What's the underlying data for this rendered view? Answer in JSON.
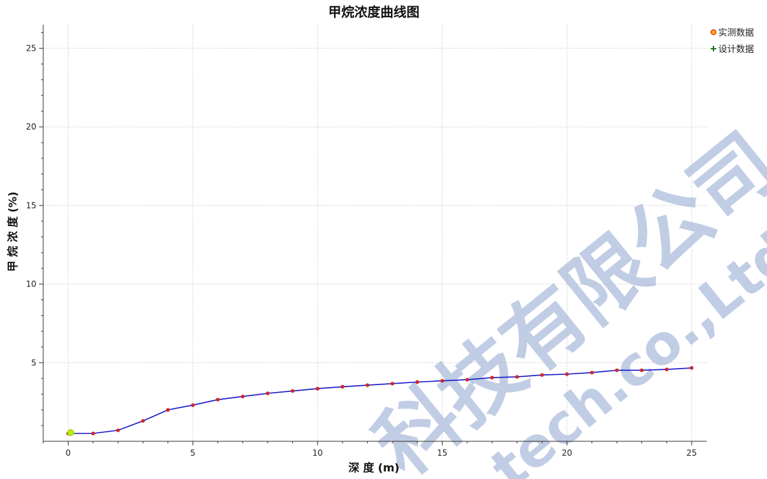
{
  "chart_data": {
    "type": "line",
    "title": "甲烷浓度曲线图",
    "xlabel": "深 度 (m)",
    "ylabel": "甲 烷 浓 度 (%)",
    "xlim": [
      -1,
      25.6
    ],
    "ylim": [
      0,
      26.5
    ],
    "x_ticks": [
      0,
      5,
      10,
      15,
      20,
      25
    ],
    "y_ticks": [
      5,
      10,
      15,
      20,
      25
    ],
    "grid": true,
    "legend_position": "top-right",
    "series": [
      {
        "name": "实测数据",
        "marker": "circle",
        "line_color": "#1a1acc",
        "marker_color": "#e8231f",
        "x": [
          0,
          1,
          2,
          3,
          4,
          5,
          6,
          7,
          8,
          9,
          10,
          11,
          12,
          13,
          14,
          15,
          16,
          17,
          18,
          19,
          20,
          21,
          22,
          23,
          24,
          25
        ],
        "y": [
          0.5,
          0.5,
          0.7,
          1.3,
          2.0,
          2.3,
          2.65,
          2.85,
          3.05,
          3.2,
          3.35,
          3.47,
          3.57,
          3.67,
          3.77,
          3.85,
          3.92,
          4.05,
          4.1,
          4.22,
          4.27,
          4.37,
          4.52,
          4.52,
          4.57,
          4.67
        ]
      },
      {
        "name": "设计数据",
        "marker": "plus",
        "marker_color": "#1f7a1f",
        "x": [],
        "y": []
      }
    ],
    "highlight_point": {
      "x": 0.1,
      "y": 0.55,
      "color": "#99ff00"
    }
  },
  "watermark": {
    "main": "科技有限公司",
    "sub": "tech.co.,Ltd"
  }
}
